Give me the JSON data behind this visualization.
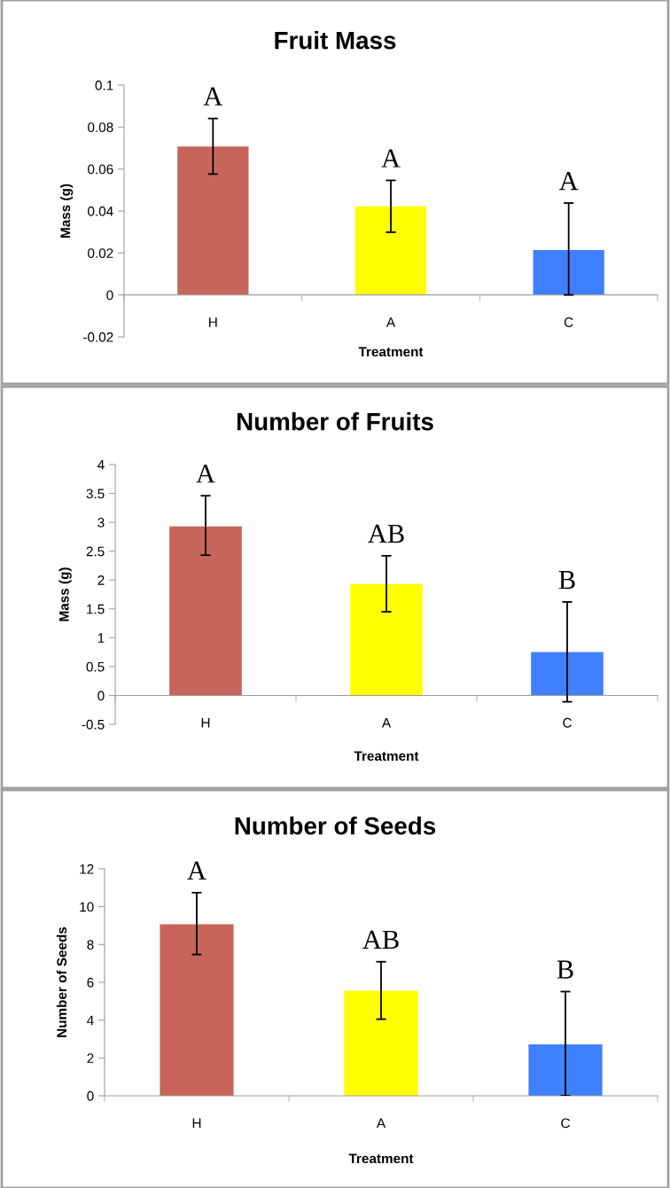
{
  "chart_data": [
    {
      "type": "bar",
      "title": "Fruit Mass",
      "xlabel": "Treatment",
      "ylabel": "Mass (g)",
      "categories": [
        "H",
        "A",
        "C"
      ],
      "values": [
        0.0707,
        0.0422,
        0.0214
      ],
      "colors": [
        "#c8655a",
        "#ffff00",
        "#4080ff"
      ],
      "errors": [
        [
          0.0576,
          0.0841
        ],
        [
          0.0299,
          0.0546
        ],
        [
          0.0,
          0.0438
        ]
      ],
      "ylim": [
        -0.02,
        0.1
      ],
      "yticks": [
        -0.02,
        0,
        0.02,
        0.04,
        0.06,
        0.08,
        0.1
      ],
      "grid": false,
      "legend": false,
      "annotations": [
        {
          "text": "A",
          "x": "H",
          "y": 0.0841
        },
        {
          "text": "A",
          "x": "A",
          "y": 0.0546
        },
        {
          "text": "A",
          "x": "C",
          "y": 0.0438
        }
      ]
    },
    {
      "type": "bar",
      "title": "Number of Fruits",
      "xlabel": "Treatment",
      "ylabel": "Mass (g)",
      "categories": [
        "H",
        "A",
        "C"
      ],
      "values": [
        2.93,
        1.93,
        0.75
      ],
      "colors": [
        "#c8655a",
        "#ffff00",
        "#4080ff"
      ],
      "errors": [
        [
          2.43,
          3.46
        ],
        [
          1.45,
          2.42
        ],
        [
          -0.11,
          1.62
        ]
      ],
      "ylim": [
        -0.5,
        4
      ],
      "yticks": [
        -0.5,
        0,
        0.5,
        1,
        1.5,
        2,
        2.5,
        3,
        3.5,
        4
      ],
      "grid": false,
      "legend": false,
      "annotations": [
        {
          "text": "A",
          "x": "H",
          "y": 3.46
        },
        {
          "text": "AB",
          "x": "A",
          "y": 2.42
        },
        {
          "text": "B",
          "x": "C",
          "y": 1.62
        }
      ]
    },
    {
      "type": "bar",
      "title": "Number of Seeds",
      "xlabel": "Treatment",
      "ylabel": "Number of Seeds",
      "categories": [
        "H",
        "A",
        "C"
      ],
      "values": [
        9.07,
        5.55,
        2.72
      ],
      "colors": [
        "#c8655a",
        "#ffff00",
        "#4080ff"
      ],
      "errors": [
        [
          7.47,
          10.74
        ],
        [
          4.05,
          7.09
        ],
        [
          0.0,
          5.51
        ]
      ],
      "ylim": [
        0,
        12
      ],
      "yticks": [
        0,
        2,
        4,
        6,
        8,
        10,
        12
      ],
      "grid": false,
      "legend": false,
      "annotations": [
        {
          "text": "A",
          "x": "H",
          "y": 10.74
        },
        {
          "text": "AB",
          "x": "A",
          "y": 7.09
        },
        {
          "text": "B",
          "x": "C",
          "y": 5.51
        }
      ]
    }
  ]
}
